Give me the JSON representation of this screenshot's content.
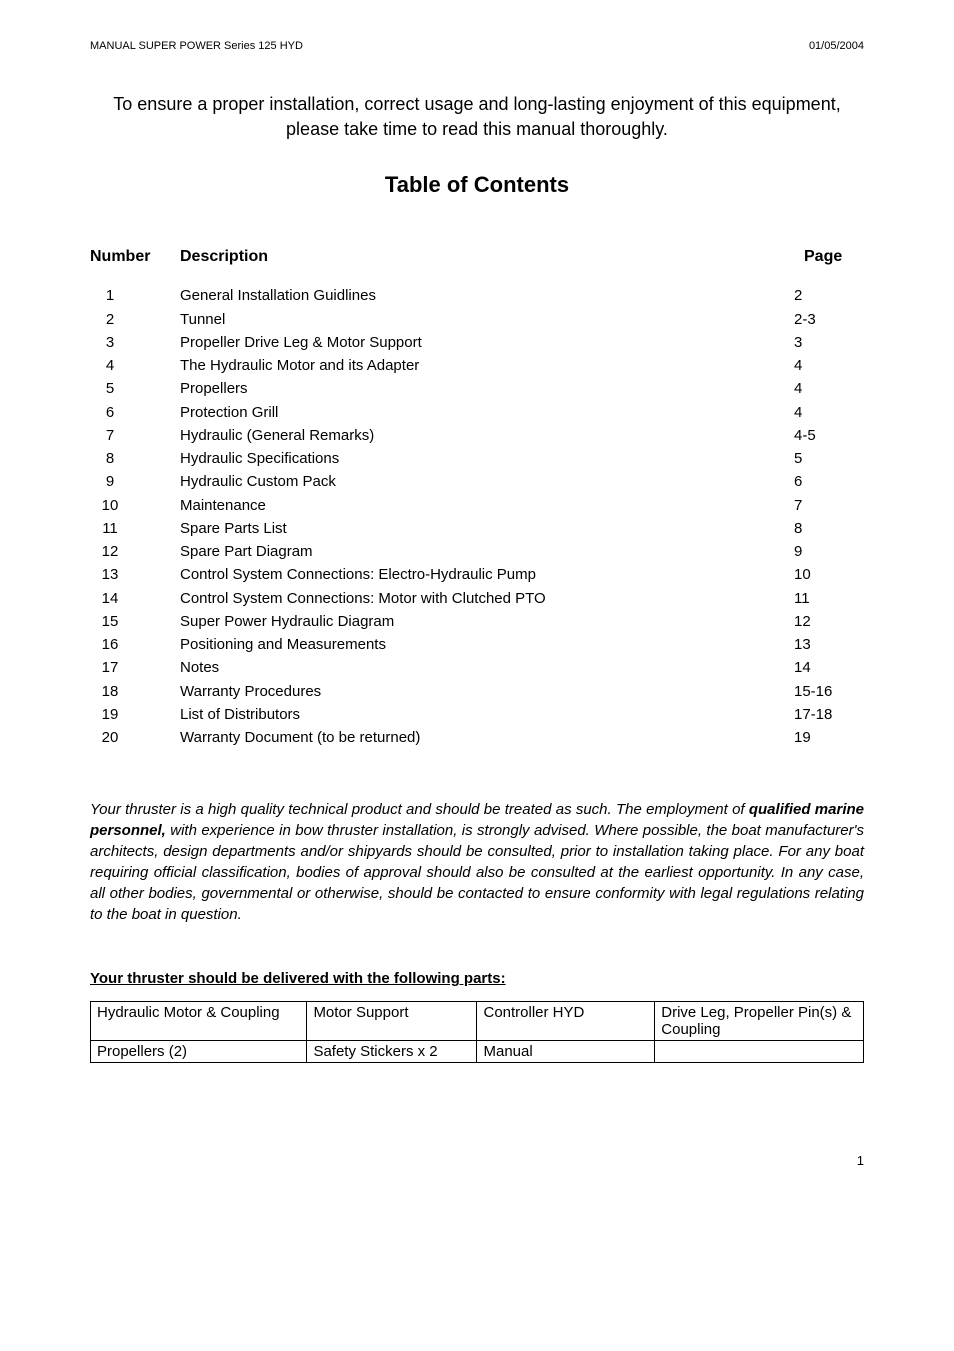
{
  "header": {
    "left": "MANUAL SUPER POWER Series 125 HYD",
    "right": "01/05/2004"
  },
  "intro": "To ensure a proper installation, correct usage and long-lasting enjoyment of this equipment, please take time to read this manual thoroughly.",
  "toc_title": "Table of Contents",
  "toc_headers": {
    "number": "Number",
    "description": "Description",
    "page": "Page"
  },
  "toc": [
    {
      "num": "1",
      "desc": "General Installation Guidlines",
      "page": "2"
    },
    {
      "num": "2",
      "desc": "Tunnel",
      "page": "2-3"
    },
    {
      "num": "3",
      "desc": "Propeller Drive Leg & Motor Support",
      "page": "3"
    },
    {
      "num": "4",
      "desc": "The Hydraulic Motor and its Adapter",
      "page": "4"
    },
    {
      "num": "5",
      "desc": "Propellers",
      "page": "4"
    },
    {
      "num": "6",
      "desc": "Protection Grill",
      "page": "4"
    },
    {
      "num": "7",
      "desc": "Hydraulic (General Remarks)",
      "page": "4-5"
    },
    {
      "num": "8",
      "desc": "Hydraulic Specifications",
      "page": "5"
    },
    {
      "num": "9",
      "desc": "Hydraulic Custom Pack",
      "page": "6"
    },
    {
      "num": "10",
      "desc": "Maintenance",
      "page": "7"
    },
    {
      "num": "11",
      "desc": "Spare Parts List",
      "page": "8"
    },
    {
      "num": "12",
      "desc": "Spare Part Diagram",
      "page": "9"
    },
    {
      "num": "13",
      "desc": "Control System Connections: Electro-Hydraulic Pump",
      "page": "10"
    },
    {
      "num": "14",
      "desc": "Control System Connections: Motor with Clutched PTO",
      "page": "11"
    },
    {
      "num": "15",
      "desc": "Super Power Hydraulic Diagram",
      "page": "12"
    },
    {
      "num": "16",
      "desc": "Positioning and Measurements",
      "page": "13"
    },
    {
      "num": "17",
      "desc": "Notes",
      "page": "14"
    },
    {
      "num": "18",
      "desc": "Warranty Procedures",
      "page": "15-16"
    },
    {
      "num": "19",
      "desc": "List of Distributors",
      "page": "17-18"
    },
    {
      "num": "20",
      "desc": "Warranty Document (to be returned)",
      "page": "19"
    }
  ],
  "paragraph": {
    "part1": "Your thruster is a high quality technical product and should be treated as such. The employment of ",
    "bold": "qualified marine personnel,",
    "part2": " with experience in bow thruster installation, is strongly advised. Where possible, the boat manufacturer's architects, design departments and/or shipyards should be consulted, prior to installation taking place. For any boat requiring official classification, bodies of approval should also be consulted at the earliest opportunity. In any case, all other bodies, governmental or otherwise, should be contacted to ensure conformity with legal regulations relating to the boat in question."
  },
  "parts_heading": "Your thruster should be delivered with the following parts:",
  "parts_table": {
    "columns_widths": [
      "28%",
      "22%",
      "23%",
      "27%"
    ],
    "rows": [
      [
        "Hydraulic Motor & Coupling",
        "Motor Support",
        "Controller HYD",
        "Drive Leg, Propeller Pin(s) & Coupling"
      ],
      [
        "Propellers (2)",
        "Safety Stickers x 2",
        "Manual",
        ""
      ]
    ]
  },
  "page_number": "1",
  "styling": {
    "page_bg": "#ffffff",
    "text_color": "#000000",
    "header_fontsize": 11,
    "intro_fontsize": 18,
    "toc_title_fontsize": 22,
    "toc_header_fontsize": 16,
    "toc_row_fontsize": 15,
    "body_fontsize": 15,
    "table_border_color": "#000000"
  }
}
